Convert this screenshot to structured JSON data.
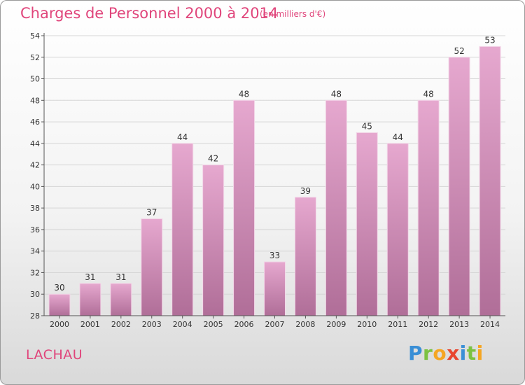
{
  "header": {
    "title": "Charges de Personnel 2000 à 2014",
    "unit_note": "(en milliers d'€)"
  },
  "footer": {
    "commune": "LACHAU",
    "brand_letters": [
      "P",
      "r",
      "o",
      "x",
      "i",
      "t",
      "i"
    ]
  },
  "colors": {
    "title": "#e0457b",
    "bar_top": "#e6a8cf",
    "bar_bottom": "#b06e98",
    "grid": "#d6d6d6"
  },
  "chart_data": {
    "type": "bar",
    "title": "Charges de Personnel 2000 à 2014",
    "subtitle": "(en milliers d'€)",
    "categories": [
      "2000",
      "2001",
      "2002",
      "2003",
      "2004",
      "2005",
      "2006",
      "2007",
      "2008",
      "2009",
      "2010",
      "2011",
      "2012",
      "2013",
      "2014"
    ],
    "values": [
      30,
      31,
      31,
      37,
      44,
      42,
      48,
      33,
      39,
      48,
      45,
      44,
      48,
      52,
      53
    ],
    "ylim": [
      28,
      54
    ],
    "yticks": [
      28,
      30,
      32,
      34,
      36,
      38,
      40,
      42,
      44,
      46,
      48,
      50,
      52,
      54
    ],
    "grid": true,
    "data_labels": true
  }
}
